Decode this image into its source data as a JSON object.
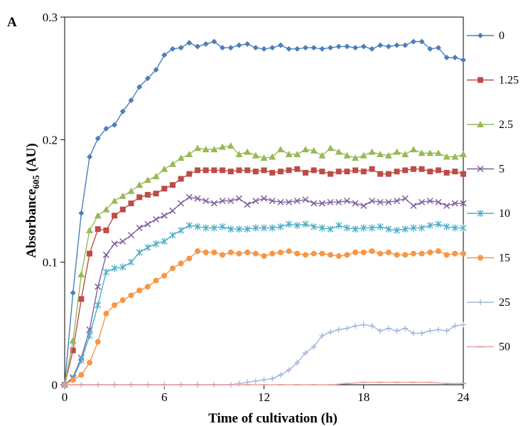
{
  "chart_data": {
    "type": "line",
    "panel_label": "A",
    "title": "",
    "xlabel": "Time of cultivation  (h)",
    "ylabel": "Absorbance",
    "ylabel_subscript": "605",
    "ylabel_unit": " (AU)",
    "xlim": [
      0,
      24
    ],
    "ylim": [
      0,
      0.3
    ],
    "xticks": [
      "0",
      "6",
      "12",
      "18",
      "24"
    ],
    "yticks": [
      "0",
      "0.1",
      "0.2",
      "0.3"
    ],
    "grid": false,
    "legend_position": "right",
    "series": [
      {
        "name": "0",
        "color": "#4a7ebb",
        "marker": "diamond",
        "x": [
          0,
          0.5,
          1,
          1.5,
          2,
          2.5,
          3,
          3.5,
          4,
          4.5,
          5,
          5.5,
          6,
          6.5,
          7,
          7.5,
          8,
          8.5,
          9,
          9.5,
          10,
          10.5,
          11,
          11.5,
          12,
          12.5,
          13,
          13.5,
          14,
          14.5,
          15,
          15.5,
          16,
          16.5,
          17,
          17.5,
          18,
          18.5,
          19,
          19.5,
          20,
          20.5,
          21,
          21.5,
          22,
          22.5,
          23,
          23.5,
          24
        ],
        "y": [
          0,
          0.075,
          0.14,
          0.186,
          0.201,
          0.209,
          0.212,
          0.223,
          0.232,
          0.243,
          0.25,
          0.257,
          0.269,
          0.274,
          0.275,
          0.279,
          0.276,
          0.278,
          0.28,
          0.275,
          0.275,
          0.277,
          0.278,
          0.275,
          0.274,
          0.275,
          0.277,
          0.274,
          0.274,
          0.275,
          0.275,
          0.274,
          0.275,
          0.276,
          0.276,
          0.275,
          0.276,
          0.274,
          0.277,
          0.276,
          0.277,
          0.277,
          0.28,
          0.28,
          0.274,
          0.275,
          0.267,
          0.267,
          0.265
        ]
      },
      {
        "name": "1.25",
        "color": "#be4b48",
        "marker": "square",
        "x": [
          0,
          0.5,
          1,
          1.5,
          2,
          2.5,
          3,
          3.5,
          4,
          4.5,
          5,
          5.5,
          6,
          6.5,
          7,
          7.5,
          8,
          8.5,
          9,
          9.5,
          10,
          10.5,
          11,
          11.5,
          12,
          12.5,
          13,
          13.5,
          14,
          14.5,
          15,
          15.5,
          16,
          16.5,
          17,
          17.5,
          18,
          18.5,
          19,
          19.5,
          20,
          20.5,
          21,
          21.5,
          22,
          22.5,
          23,
          23.5,
          24
        ],
        "y": [
          0,
          0.028,
          0.07,
          0.107,
          0.127,
          0.126,
          0.138,
          0.143,
          0.148,
          0.153,
          0.155,
          0.156,
          0.16,
          0.163,
          0.168,
          0.172,
          0.175,
          0.175,
          0.175,
          0.175,
          0.174,
          0.175,
          0.175,
          0.174,
          0.175,
          0.173,
          0.174,
          0.175,
          0.176,
          0.173,
          0.175,
          0.174,
          0.172,
          0.174,
          0.174,
          0.175,
          0.174,
          0.176,
          0.172,
          0.172,
          0.174,
          0.175,
          0.176,
          0.176,
          0.174,
          0.175,
          0.173,
          0.174,
          0.172
        ]
      },
      {
        "name": "2.5",
        "color": "#98b954",
        "marker": "triangle",
        "x": [
          0,
          0.5,
          1,
          1.5,
          2,
          2.5,
          3,
          3.5,
          4,
          4.5,
          5,
          5.5,
          6,
          6.5,
          7,
          7.5,
          8,
          8.5,
          9,
          9.5,
          10,
          10.5,
          11,
          11.5,
          12,
          12.5,
          13,
          13.5,
          14,
          14.5,
          15,
          15.5,
          16,
          16.5,
          17,
          17.5,
          18,
          18.5,
          19,
          19.5,
          20,
          20.5,
          21,
          21.5,
          22,
          22.5,
          23,
          23.5,
          24
        ],
        "y": [
          0,
          0.036,
          0.09,
          0.126,
          0.138,
          0.143,
          0.15,
          0.154,
          0.158,
          0.163,
          0.167,
          0.17,
          0.176,
          0.18,
          0.185,
          0.188,
          0.193,
          0.192,
          0.192,
          0.194,
          0.195,
          0.188,
          0.19,
          0.187,
          0.185,
          0.186,
          0.192,
          0.188,
          0.188,
          0.192,
          0.191,
          0.187,
          0.193,
          0.19,
          0.187,
          0.185,
          0.187,
          0.19,
          0.188,
          0.187,
          0.19,
          0.188,
          0.192,
          0.189,
          0.189,
          0.189,
          0.186,
          0.186,
          0.188
        ]
      },
      {
        "name": "5",
        "color": "#7d60a0",
        "marker": "x",
        "x": [
          0,
          0.5,
          1,
          1.5,
          2,
          2.5,
          3,
          3.5,
          4,
          4.5,
          5,
          5.5,
          6,
          6.5,
          7,
          7.5,
          8,
          8.5,
          9,
          9.5,
          10,
          10.5,
          11,
          11.5,
          12,
          12.5,
          13,
          13.5,
          14,
          14.5,
          15,
          15.5,
          16,
          16.5,
          17,
          17.5,
          18,
          18.5,
          19,
          19.5,
          20,
          20.5,
          21,
          21.5,
          22,
          22.5,
          23,
          23.5,
          24
        ],
        "y": [
          0,
          0.006,
          0.022,
          0.045,
          0.08,
          0.106,
          0.115,
          0.117,
          0.122,
          0.128,
          0.131,
          0.135,
          0.138,
          0.142,
          0.148,
          0.153,
          0.152,
          0.15,
          0.148,
          0.15,
          0.15,
          0.152,
          0.147,
          0.15,
          0.152,
          0.15,
          0.149,
          0.149,
          0.15,
          0.151,
          0.148,
          0.148,
          0.149,
          0.149,
          0.15,
          0.148,
          0.146,
          0.15,
          0.149,
          0.149,
          0.15,
          0.152,
          0.146,
          0.149,
          0.15,
          0.149,
          0.146,
          0.148,
          0.148
        ]
      },
      {
        "name": "10",
        "color": "#4bacc6",
        "marker": "asterisk",
        "x": [
          0,
          0.5,
          1,
          1.5,
          2,
          2.5,
          3,
          3.5,
          4,
          4.5,
          5,
          5.5,
          6,
          6.5,
          7,
          7.5,
          8,
          8.5,
          9,
          9.5,
          10,
          10.5,
          11,
          11.5,
          12,
          12.5,
          13,
          13.5,
          14,
          14.5,
          15,
          15.5,
          16,
          16.5,
          17,
          17.5,
          18,
          18.5,
          19,
          19.5,
          20,
          20.5,
          21,
          21.5,
          22,
          22.5,
          23,
          23.5,
          24
        ],
        "y": [
          0,
          0.005,
          0.02,
          0.04,
          0.065,
          0.092,
          0.095,
          0.096,
          0.1,
          0.108,
          0.112,
          0.115,
          0.117,
          0.122,
          0.126,
          0.13,
          0.129,
          0.128,
          0.128,
          0.129,
          0.127,
          0.127,
          0.127,
          0.128,
          0.128,
          0.128,
          0.129,
          0.131,
          0.13,
          0.131,
          0.129,
          0.128,
          0.127,
          0.13,
          0.128,
          0.127,
          0.128,
          0.128,
          0.129,
          0.127,
          0.126,
          0.127,
          0.128,
          0.128,
          0.13,
          0.131,
          0.129,
          0.128,
          0.128
        ]
      },
      {
        "name": "15",
        "color": "#f79646",
        "marker": "circle",
        "x": [
          0,
          0.5,
          1,
          1.5,
          2,
          2.5,
          3,
          3.5,
          4,
          4.5,
          5,
          5.5,
          6,
          6.5,
          7,
          7.5,
          8,
          8.5,
          9,
          9.5,
          10,
          10.5,
          11,
          11.5,
          12,
          12.5,
          13,
          13.5,
          14,
          14.5,
          15,
          15.5,
          16,
          16.5,
          17,
          17.5,
          18,
          18.5,
          19,
          19.5,
          20,
          20.5,
          21,
          21.5,
          22,
          22.5,
          23,
          23.5,
          24
        ],
        "y": [
          0,
          0.004,
          0.008,
          0.018,
          0.035,
          0.058,
          0.065,
          0.069,
          0.073,
          0.077,
          0.08,
          0.085,
          0.089,
          0.095,
          0.099,
          0.103,
          0.109,
          0.108,
          0.108,
          0.106,
          0.108,
          0.107,
          0.108,
          0.107,
          0.105,
          0.107,
          0.108,
          0.109,
          0.107,
          0.106,
          0.107,
          0.107,
          0.106,
          0.105,
          0.106,
          0.108,
          0.108,
          0.109,
          0.107,
          0.108,
          0.106,
          0.106,
          0.107,
          0.107,
          0.108,
          0.109,
          0.106,
          0.107,
          0.107
        ]
      },
      {
        "name": "25",
        "color": "#a5b7dc",
        "marker": "plus",
        "x": [
          0,
          1,
          2,
          3,
          4,
          5,
          6,
          7,
          8,
          9,
          10,
          10.5,
          11,
          11.5,
          12,
          12.5,
          13,
          13.5,
          14,
          14.5,
          15,
          15.5,
          16,
          16.5,
          17,
          17.5,
          18,
          18.5,
          19,
          19.5,
          20,
          20.5,
          21,
          21.5,
          22,
          22.5,
          23,
          23.5,
          24
        ],
        "y": [
          0,
          0,
          0,
          0,
          0,
          0,
          0,
          0,
          0,
          0,
          0,
          0.001,
          0.002,
          0.003,
          0.004,
          0.005,
          0.008,
          0.012,
          0.018,
          0.026,
          0.031,
          0.04,
          0.043,
          0.045,
          0.046,
          0.048,
          0.049,
          0.048,
          0.044,
          0.046,
          0.044,
          0.046,
          0.042,
          0.042,
          0.044,
          0.045,
          0.044,
          0.048,
          0.049
        ]
      },
      {
        "name": "50",
        "color": "#e6a0a0",
        "marker": "dash",
        "x": [
          0,
          1,
          2,
          3,
          4,
          5,
          6,
          7,
          8,
          9,
          10,
          11,
          12,
          13,
          14,
          15,
          16,
          17,
          18,
          19,
          20,
          21,
          22,
          23,
          24
        ],
        "y": [
          0,
          0,
          0,
          0,
          0,
          0,
          0,
          0,
          0,
          0,
          0,
          0,
          0,
          0,
          0,
          0,
          0,
          0.001,
          0.002,
          0.002,
          0.002,
          0.002,
          0.002,
          0.001,
          0.001
        ]
      }
    ]
  }
}
